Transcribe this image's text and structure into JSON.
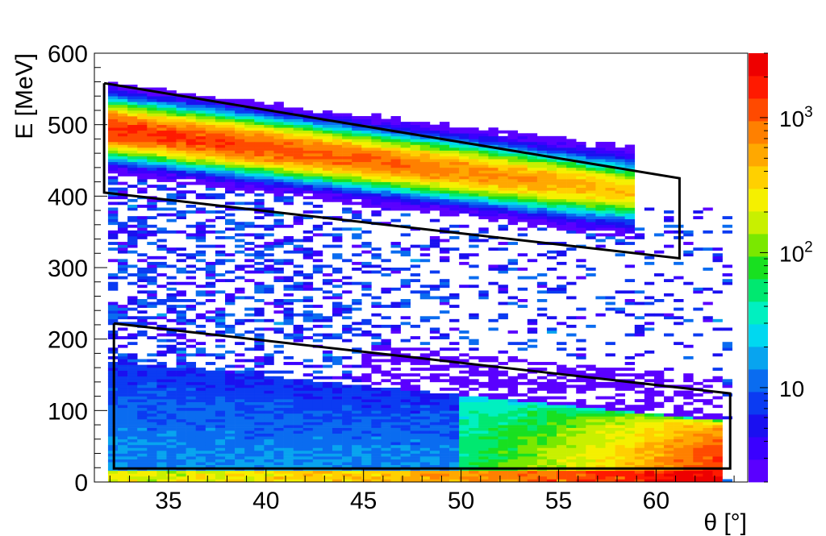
{
  "chart_data": {
    "type": "heatmap",
    "title": "",
    "xlabel": "θ [°]",
    "ylabel": "E  [MeV]",
    "xlim": [
      31.2,
      64.7
    ],
    "ylim": [
      0,
      600
    ],
    "x_ticks": [
      35,
      40,
      45,
      50,
      55,
      60
    ],
    "x_tick_labels": [
      "35",
      "40",
      "45",
      "50",
      "55",
      "60"
    ],
    "y_ticks": [
      0,
      100,
      200,
      300,
      400,
      500,
      600
    ],
    "y_tick_labels": [
      "0",
      "100",
      "200",
      "300",
      "400",
      "500",
      "600"
    ],
    "color_scale": "log",
    "zlim": [
      2,
      3000
    ],
    "z_ticks": [
      10,
      100,
      1000
    ],
    "z_tick_labels": [
      "10",
      "10",
      "10"
    ],
    "z_tick_exponents": [
      "",
      "2",
      "3"
    ],
    "palette": [
      "#5a00ff",
      "#3a00ff",
      "#1a10f0",
      "#0b3bf2",
      "#0a6cf0",
      "#08a4ef",
      "#00d8f0",
      "#00f0c0",
      "#00e870",
      "#18e020",
      "#7ae800",
      "#c8f000",
      "#f5f000",
      "#ffd000",
      "#ffa800",
      "#ff8000",
      "#ff4a00",
      "#ff1a00",
      "#ee0000"
    ],
    "bands": [
      {
        "name": "upper",
        "theta_range": [
          31.9,
          58.9
        ],
        "center_energy": [
          495,
          405
        ],
        "halo_width_MeV": 55,
        "peak_width_MeV": 14,
        "peak_counts": [
          1500,
          350
        ]
      },
      {
        "name": "lower",
        "theta_range": [
          31.9,
          63.6
        ],
        "edge_energy": [
          170,
          85
        ],
        "low_counts": [
          12,
          2000
        ],
        "step_theta": 50
      },
      {
        "name": "floor",
        "theta_range": [
          31.9,
          63.6
        ],
        "energy_range": [
          0,
          16
        ],
        "counts": [
          200,
          3000
        ]
      }
    ],
    "cut_polygons": [
      {
        "name": "upper-cut",
        "points": [
          [
            31.7,
            558
          ],
          [
            61.2,
            425
          ],
          [
            61.2,
            313
          ],
          [
            31.7,
            405
          ],
          [
            31.7,
            558
          ]
        ]
      },
      {
        "name": "lower-cut",
        "points": [
          [
            32.2,
            222
          ],
          [
            63.8,
            124
          ],
          [
            63.8,
            19
          ],
          [
            32.2,
            19
          ],
          [
            32.2,
            222
          ]
        ]
      }
    ]
  }
}
